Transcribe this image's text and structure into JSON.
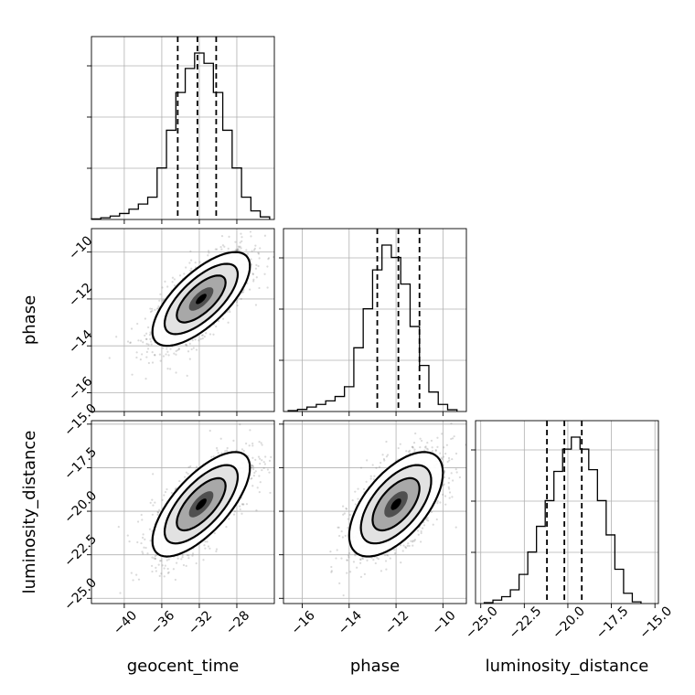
{
  "chart_data": {
    "type": "corner",
    "parameters": [
      "geocent_time",
      "phase",
      "luminosity_distance"
    ],
    "axis_labels": {
      "geocent_time": "geocent_time",
      "phase": "phase",
      "luminosity_distance": "luminosity_distance"
    },
    "ranges": {
      "geocent_time": [
        -43.5,
        -24.0
      ],
      "phase": [
        -16.8,
        -9.0
      ],
      "luminosity_distance": [
        -25.3,
        -14.8
      ]
    },
    "ticks": {
      "geocent_time": {
        "values": [
          -40,
          -36,
          -32,
          -28
        ],
        "labels": [
          "−40",
          "−36",
          "−32",
          "−28"
        ]
      },
      "phase": {
        "values": [
          -16,
          -14,
          -12,
          -10
        ],
        "labels": [
          "−16",
          "−14",
          "−12",
          "−10"
        ]
      },
      "luminosity_distance": {
        "values": [
          -25.0,
          -22.5,
          -20.0,
          -17.5,
          -15.0
        ],
        "labels": [
          "−25.0",
          "−22.5",
          "−20.0",
          "−17.5",
          "−15.0"
        ]
      }
    },
    "grid": true,
    "histograms": {
      "geocent_time": {
        "edges": [
          -43.5,
          -42.5,
          -41.5,
          -40.5,
          -39.5,
          -38.5,
          -37.5,
          -36.5,
          -35.5,
          -34.5,
          -33.5,
          -32.5,
          -31.5,
          -30.5,
          -29.5,
          -28.5,
          -27.5,
          -26.5,
          -25.5,
          -24.5
        ],
        "counts": [
          0.003,
          0.01,
          0.02,
          0.035,
          0.06,
          0.09,
          0.13,
          0.3,
          0.52,
          0.74,
          0.88,
          0.97,
          0.91,
          0.74,
          0.52,
          0.3,
          0.13,
          0.05,
          0.015
        ],
        "quantiles": [
          -34.3,
          -32.2,
          -30.2
        ]
      },
      "phase": {
        "edges": [
          -16.6,
          -16.2,
          -15.8,
          -15.4,
          -15.0,
          -14.6,
          -14.2,
          -13.8,
          -13.4,
          -13.0,
          -12.6,
          -12.2,
          -11.8,
          -11.4,
          -11.0,
          -10.6,
          -10.2,
          -9.8,
          -9.4
        ],
        "counts": [
          0.005,
          0.012,
          0.025,
          0.04,
          0.06,
          0.085,
          0.14,
          0.36,
          0.58,
          0.8,
          0.94,
          0.87,
          0.72,
          0.48,
          0.26,
          0.11,
          0.04,
          0.01
        ],
        "quantiles": [
          -12.8,
          -11.9,
          -11.0
        ]
      },
      "luminosity_distance": {
        "edges": [
          -24.8,
          -24.3,
          -23.8,
          -23.3,
          -22.8,
          -22.3,
          -21.8,
          -21.3,
          -20.8,
          -20.3,
          -19.8,
          -19.3,
          -18.8,
          -18.3,
          -17.8,
          -17.3,
          -16.8,
          -16.3,
          -15.8
        ],
        "counts": [
          0.005,
          0.02,
          0.04,
          0.08,
          0.17,
          0.3,
          0.45,
          0.6,
          0.77,
          0.9,
          0.97,
          0.9,
          0.78,
          0.6,
          0.4,
          0.2,
          0.06,
          0.01
        ],
        "quantiles": [
          -21.2,
          -20.2,
          -19.2
        ]
      }
    },
    "pairs": [
      {
        "x": "geocent_time",
        "y": "phase",
        "center": [
          -31.8,
          -12.0
        ],
        "sigma": [
          2.6,
          1.0
        ],
        "rho": 0.7
      },
      {
        "x": "geocent_time",
        "y": "luminosity_distance",
        "center": [
          -31.8,
          -19.6
        ],
        "sigma": [
          2.6,
          1.5
        ],
        "rho": 0.7
      },
      {
        "x": "phase",
        "y": "luminosity_distance",
        "center": [
          -12.0,
          -19.6
        ],
        "sigma": [
          1.0,
          1.5
        ],
        "rho": 0.6
      }
    ]
  }
}
